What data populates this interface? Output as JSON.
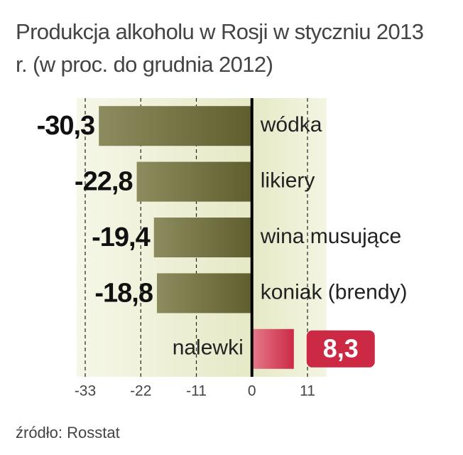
{
  "chart_data": {
    "type": "bar",
    "orientation": "horizontal",
    "title": "Produkcja alkoholu w Rosji w styczniu 2013 r. (w proc. do grudnia 2012)",
    "categories": [
      "wódka",
      "likiery",
      "wina musujące",
      "koniak (brendy)",
      "nalewki"
    ],
    "values": [
      -30.3,
      -22.8,
      -19.4,
      -18.8,
      8.3
    ],
    "value_labels": [
      "-30,3",
      "-22,8",
      "-19,4",
      "-18,8",
      "8,3"
    ],
    "color": "#6e6d3c",
    "positive_color": "#cc2a44",
    "xlim": [
      -33,
      11
    ],
    "xticks": [
      -33,
      -22,
      -11,
      0,
      11
    ],
    "grid": true,
    "source": "źródło: Rosstat"
  }
}
